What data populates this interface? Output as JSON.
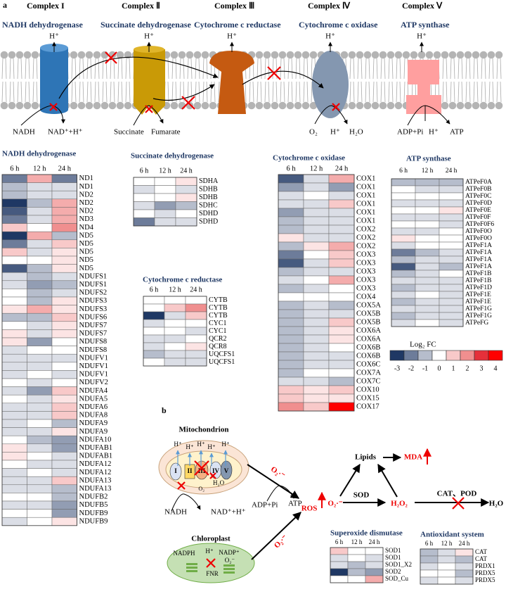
{
  "panel_a": {
    "label": "a",
    "complexes": [
      {
        "name": "Complex I",
        "enzyme": "NADH dehydrogenase",
        "proton": "H⁺"
      },
      {
        "name": "Complex Ⅱ",
        "enzyme": "Succinate dehydrogenase",
        "proton": "H⁺"
      },
      {
        "name": "Complex Ⅲ",
        "enzyme": "Cytochrome c reductase",
        "proton": "H⁺"
      },
      {
        "name": "Complex Ⅳ",
        "enzyme": "Cytochrome c oxidase",
        "proton": "H⁺"
      },
      {
        "name": "Complex Ⅴ",
        "enzyme": "ATP synthase",
        "proton": "H⁺"
      }
    ],
    "labels": [
      "NADH",
      "NAD⁺+H⁺",
      "Succinate",
      "Fumarate",
      "O₂",
      "H⁺",
      "H₂O",
      "ADP+Pi",
      "H⁺",
      "ATP"
    ]
  },
  "heatmaps": [
    {
      "title": "NADH dehydrogenase",
      "columns": [
        "6 h",
        "12 h",
        "24 h"
      ],
      "rows": [
        "ND1",
        "ND1",
        "ND2",
        "ND2",
        "ND2",
        "ND3",
        "ND4",
        "ND5",
        "ND5",
        "ND5",
        "ND5",
        "ND5",
        "NDUFS1",
        "NDUFS1",
        "NDUFS2",
        "NDUFS3",
        "NDUFS3",
        "NDUFS6",
        "NDUFS7",
        "NDUFS7",
        "NDUFS8",
        "NDUFS8",
        "NDUFV1",
        "NDUFV1",
        "NDUFV1",
        "NDUFV2",
        "NDUFA4",
        "NDUFA5",
        "NDUFA6",
        "NDUFA8",
        "NDUFA9",
        "NDUFA9",
        "NDUFA10",
        "NDUFAB1",
        "NDUFAB1",
        "NDUFA12",
        "NDUFA12",
        "NDUFA13",
        "NDUFA13",
        "NDUFB2",
        "NDUFB5",
        "NDUFB9",
        "NDUFB9"
      ],
      "values": [
        [
          -2,
          1.5,
          -2
        ],
        [
          -1,
          -0.5,
          -0.5
        ],
        [
          -1,
          -0.5,
          -0.5
        ],
        [
          -3,
          -1,
          1.5
        ],
        [
          -2.5,
          -0.5,
          1.5
        ],
        [
          -2,
          -0.5,
          1.5
        ],
        [
          1,
          0,
          2
        ],
        [
          -3,
          1.5,
          -1
        ],
        [
          -2,
          -0.5,
          1
        ],
        [
          1,
          -0.5,
          0.5
        ],
        [
          0,
          0,
          0.5
        ],
        [
          -2.5,
          -1,
          0.5
        ],
        [
          -0.5,
          -1,
          -0.5
        ],
        [
          -0.5,
          -1.5,
          -1
        ],
        [
          0,
          -1,
          -0.5
        ],
        [
          0,
          -1,
          0.5
        ],
        [
          0.5,
          1.5,
          0.5
        ],
        [
          -1,
          -1,
          1
        ],
        [
          0,
          -0.5,
          0.5
        ],
        [
          0.5,
          -0.5,
          0.5
        ],
        [
          0.5,
          -1.5,
          0
        ],
        [
          -0.5,
          0,
          0
        ],
        [
          -0.5,
          -0.5,
          -0.5
        ],
        [
          -0.5,
          -0.5,
          0
        ],
        [
          -0.5,
          0,
          -0.5
        ],
        [
          0,
          -0.5,
          0
        ],
        [
          -0.5,
          -1.5,
          1
        ],
        [
          0,
          -0.5,
          0.5
        ],
        [
          -0.5,
          -0.5,
          1
        ],
        [
          -0.5,
          -0.5,
          1
        ],
        [
          -0.5,
          0,
          -1
        ],
        [
          -0.5,
          -0.5,
          0.5
        ],
        [
          0,
          -1,
          -1.5
        ],
        [
          0.5,
          -0.5,
          -1.5
        ],
        [
          0.5,
          0,
          -0.5
        ],
        [
          0,
          -0.5,
          -0.5
        ],
        [
          -0.5,
          0,
          -0.5
        ],
        [
          -0.5,
          -0.5,
          1
        ],
        [
          -0.5,
          -0.5,
          -1
        ],
        [
          0,
          0,
          -1
        ],
        [
          -0.5,
          -0.5,
          -1.5
        ],
        [
          0,
          0,
          -1.5
        ],
        [
          -0.5,
          0,
          0.5
        ]
      ]
    },
    {
      "title": "Succinate dehydrogenase",
      "columns": [
        "6 h",
        "12 h",
        "24 h"
      ],
      "rows": [
        "SDHA",
        "SDHB",
        "SDHB",
        "SDHC",
        "SDHD",
        "SDHD"
      ],
      "values": [
        [
          0,
          0,
          0.5
        ],
        [
          -0.5,
          0,
          -0.5
        ],
        [
          0,
          0,
          0.5
        ],
        [
          -0.5,
          -1.5,
          -1
        ],
        [
          0,
          -0.5,
          0
        ],
        [
          -2,
          -0.5,
          -0.5
        ]
      ]
    },
    {
      "title": "Cytochrome c reductase",
      "columns": [
        "6 h",
        "12 h",
        "24 h"
      ],
      "rows": [
        "CYTB",
        "CYTB",
        "CYTB",
        "CYC1",
        "CYC1",
        "QCR2",
        "QCR8",
        "UQCFS1",
        "UQCFS1"
      ],
      "values": [
        [
          0,
          0,
          0
        ],
        [
          0,
          1,
          2
        ],
        [
          -3,
          -0.5,
          1
        ],
        [
          -0.5,
          0,
          0
        ],
        [
          0,
          0,
          -0.5
        ],
        [
          -0.5,
          -0.5,
          0
        ],
        [
          -0.5,
          0,
          0.5
        ],
        [
          -1,
          -0.5,
          -0.5
        ],
        [
          0,
          -0.5,
          -0.5
        ]
      ]
    },
    {
      "title": "Cytochrome c oxidase",
      "columns": [
        "6 h",
        "12 h",
        "24 h"
      ],
      "rows": [
        "COX1",
        "COX1",
        "COX1",
        "COX1",
        "COX1",
        "COX1",
        "COX2",
        "COX2",
        "COX2",
        "COX3",
        "COX3",
        "COX3",
        "COX3",
        "COX3",
        "COX4",
        "COX5A",
        "COX5B",
        "COX5B",
        "COX6A",
        "COX6A",
        "COX6B",
        "COX6B",
        "COX6C",
        "COX7A",
        "COX7C",
        "COX10",
        "COX15",
        "COX17"
      ],
      "values": [
        [
          -2.5,
          -0.5,
          1.5
        ],
        [
          -1.5,
          -0.5,
          -1.5
        ],
        [
          -0.5,
          0,
          -0.5
        ],
        [
          -0.5,
          -0.5,
          1
        ],
        [
          -1.5,
          -0.5,
          -0.5
        ],
        [
          -1,
          -0.5,
          -0.5
        ],
        [
          -1,
          -0.5,
          -0.5
        ],
        [
          0.5,
          -0.5,
          -0.5
        ],
        [
          -1,
          0.5,
          1.5
        ],
        [
          -2,
          0,
          1
        ],
        [
          -2.5,
          -0.5,
          1
        ],
        [
          -1,
          -0.5,
          -0.5
        ],
        [
          -0.5,
          0,
          1.5
        ],
        [
          -1,
          -0.5,
          0
        ],
        [
          0,
          0,
          0
        ],
        [
          -1,
          -0.5,
          -1
        ],
        [
          -1,
          -0.5,
          -0.5
        ],
        [
          -1,
          -0.5,
          1
        ],
        [
          -1,
          -0.5,
          0.5
        ],
        [
          -1,
          -0.5,
          0.5
        ],
        [
          -1,
          -0.5,
          0
        ],
        [
          -1,
          -0.5,
          -0.5
        ],
        [
          -1,
          -0.5,
          -0.5
        ],
        [
          -1,
          0,
          0
        ],
        [
          -0.5,
          -0.5,
          -1
        ],
        [
          1,
          0.5,
          1
        ],
        [
          1,
          0.5,
          0.5
        ],
        [
          2,
          1,
          4
        ]
      ]
    },
    {
      "title": "ATP synthase",
      "columns": [
        "6 h",
        "12 h",
        "24 h"
      ],
      "rows": [
        "ATPeF0A",
        "ATPeF0B",
        "ATPeF0C",
        "ATPeF0D",
        "ATPeF0E",
        "ATPeF0F",
        "ATPeF0F6",
        "ATPeF0O",
        "ATPeF0O",
        "ATPeF1A",
        "ATPeF1A",
        "ATPeF1A",
        "ATPeF1A",
        "ATPeF1B",
        "ATPeF1B",
        "ATPeF1D",
        "ATPeF1E",
        "ATPeF1E",
        "ATPeF1G",
        "ATPeF1G",
        "ATPeFG"
      ],
      "values": [
        [
          -1,
          -1,
          -1
        ],
        [
          0,
          -0.5,
          -0.5
        ],
        [
          0,
          0,
          0
        ],
        [
          -0.5,
          -0.5,
          -0.5
        ],
        [
          0,
          0,
          0.5
        ],
        [
          -0.5,
          -0.5,
          -0.5
        ],
        [
          0,
          0,
          -0.5
        ],
        [
          -0.5,
          -0.5,
          0
        ],
        [
          0.5,
          0,
          0
        ],
        [
          -0.5,
          0,
          0
        ],
        [
          -2,
          -1,
          -0.5
        ],
        [
          -1,
          -0.5,
          -0.5
        ],
        [
          -2.5,
          -0.5,
          -1
        ],
        [
          -1,
          -0.5,
          0
        ],
        [
          -0.5,
          -0.5,
          -0.5
        ],
        [
          -1,
          -0.5,
          -0.5
        ],
        [
          -0.5,
          0,
          -0.5
        ],
        [
          -1,
          -0.5,
          -0.5
        ],
        [
          -0.5,
          -0.5,
          -0.5
        ],
        [
          -1,
          -0.5,
          -0.5
        ],
        [
          -0.5,
          0,
          -0.5
        ]
      ]
    },
    {
      "title": "Superoxide dismutase",
      "columns": [
        "6 h",
        "12 h",
        "24 h"
      ],
      "rows": [
        "SOD1",
        "SOD1",
        "SOD1_X2",
        "SOD2",
        "SOD_Cu"
      ],
      "values": [
        [
          1,
          0,
          0
        ],
        [
          -0.5,
          0,
          -0.5
        ],
        [
          -0.5,
          -1,
          -0.5
        ],
        [
          -3,
          -1,
          -1.5
        ],
        [
          0,
          0,
          1.5
        ]
      ]
    },
    {
      "title": "Antioxidant system",
      "columns": [
        "6 h",
        "12 h",
        "24 h"
      ],
      "rows": [
        "CAT",
        "CAT",
        "PRDX1",
        "PRDX5",
        "PRDX5"
      ],
      "values": [
        [
          -1,
          -0.5,
          0.5
        ],
        [
          -1,
          -0.5,
          -1
        ],
        [
          -0.5,
          0,
          -0.5
        ],
        [
          0,
          0,
          -1
        ],
        [
          -0.5,
          0,
          -0.5
        ]
      ]
    }
  ],
  "legend": {
    "title": "Log₂ FC",
    "ticks": [
      -3,
      -2,
      -1,
      0,
      1,
      2,
      3,
      4
    ],
    "colors": [
      "#1f3864",
      "#6d7c9a",
      "#b6bdcc",
      "#ffffff",
      "#f8c9c9",
      "#f08f8f",
      "#e5303a",
      "#ff0000"
    ]
  },
  "panel_b": {
    "label": "b",
    "mitochondrion": {
      "title": "Mitochondrion",
      "complexes": [
        "I",
        "II",
        "III",
        "IV",
        "V"
      ],
      "protons": [
        "H⁺",
        "H⁺",
        "H⁺",
        "H⁺",
        "H⁺"
      ],
      "water": "H₂O",
      "oxygen": "O₂"
    },
    "chloroplast": {
      "title": "Chloroplast",
      "labels": [
        "NADPH",
        "H⁺",
        "NADP⁺",
        "O₂⁻",
        "FNR"
      ]
    },
    "flow": {
      "nadh": "NADH",
      "nad": "NAD⁺+H⁺",
      "adp": "ADP+Pi",
      "atp": "ATP",
      "ros": "ROS",
      "superoxide": [
        "O₂·⁻",
        "O₂·⁻",
        "O₂·⁻"
      ],
      "sod": "SOD",
      "lipids": "Lipids",
      "mda": "MDA",
      "h2o2": "H₂O₂",
      "cat_pod": "CAT、POD",
      "water": "H₂O"
    }
  }
}
